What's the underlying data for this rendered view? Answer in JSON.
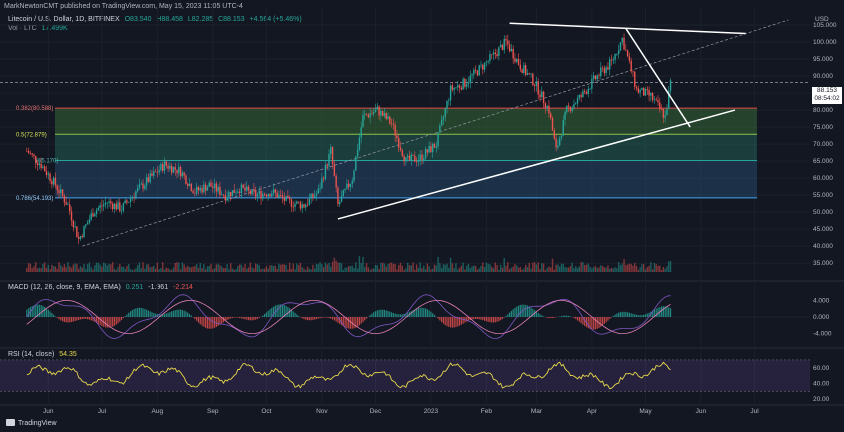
{
  "header": {
    "publisher": "MarkNewtonCMT published on TradingView.com, May 15, 2023 11:05 UTC-4",
    "symbol": "Litecoin / U.S. Dollar, 1D, BITFINEX",
    "open": "O83.540",
    "high": "H88.458",
    "low": "L82.285",
    "close": "C88.153",
    "change": "+4.564 (+5.46%)",
    "vol_label": "Vol · LTC",
    "vol_value": "17.499K"
  },
  "price_axis": {
    "currency": "USD",
    "ticks": [
      "105.000",
      "100.000",
      "95.000",
      "90.000",
      "85.000",
      "80.000",
      "75.000",
      "70.000",
      "65.000",
      "60.000",
      "55.000",
      "50.000",
      "45.000",
      "40.000",
      "35.000"
    ]
  },
  "last_price": {
    "value": "88.153",
    "countdown": "08:54:02"
  },
  "fib_levels": [
    {
      "label": "0.382(80.588)",
      "value": 80.588
    },
    {
      "label": "0.5(72.879)",
      "value": 72.879
    },
    {
      "label": "(65.170)",
      "value": 65.17
    },
    {
      "label": "0.786(54.193)",
      "value": 54.193
    }
  ],
  "time_axis": [
    "Jun",
    "Jul",
    "Aug",
    "Sep",
    "Oct",
    "Nov",
    "Dec",
    "2023",
    "Feb",
    "Mar",
    "Apr",
    "May",
    "Jun",
    "Jul"
  ],
  "macd": {
    "label": "MACD (12, 26, close, 9, EMA, EMA)",
    "hist": "0.251",
    "macd": "-1.961",
    "signal": "-2.214",
    "ticks": [
      "4.000",
      "0.000",
      "-4.000"
    ]
  },
  "rsi": {
    "label": "RSI (14, close)",
    "value": "54.35",
    "ticks": [
      "60.00",
      "40.00",
      "20.00"
    ]
  },
  "footer": {
    "brand": "TradingView"
  },
  "colors": {
    "bull": "#26a69a",
    "bear": "#ef5350",
    "bg": "#131722",
    "rsi": "#e8d94a",
    "macd_line": "#7e57c2",
    "signal_line": "#e57fb8"
  },
  "chart_data": {
    "type": "line",
    "title": "Litecoin / U.S. Dollar, 1D, BITFINEX",
    "xlabel": "",
    "ylabel": "USD",
    "ylim": [
      33,
      110
    ],
    "x": [
      "2022-05-20",
      "2022-05-28",
      "2022-06-05",
      "2022-06-12",
      "2022-06-18",
      "2022-06-26",
      "2022-07-04",
      "2022-07-12",
      "2022-07-20",
      "2022-07-28",
      "2022-08-05",
      "2022-08-14",
      "2022-08-22",
      "2022-08-30",
      "2022-09-08",
      "2022-09-16",
      "2022-09-25",
      "2022-10-04",
      "2022-10-13",
      "2022-10-22",
      "2022-10-30",
      "2022-11-06",
      "2022-11-10",
      "2022-11-18",
      "2022-11-24",
      "2022-12-02",
      "2022-12-10",
      "2022-12-18",
      "2022-12-26",
      "2023-01-04",
      "2023-01-12",
      "2023-01-20",
      "2023-01-28",
      "2023-02-05",
      "2023-02-12",
      "2023-02-20",
      "2023-02-28",
      "2023-03-08",
      "2023-03-12",
      "2023-03-18",
      "2023-03-26",
      "2023-04-04",
      "2023-04-12",
      "2023-04-18",
      "2023-04-26",
      "2023-05-04",
      "2023-05-12",
      "2023-05-15"
    ],
    "series": [
      {
        "values": [
          68,
          64,
          58,
          52,
          42,
          50,
          53,
          51,
          56,
          60,
          64,
          62,
          56,
          58,
          55,
          57,
          55,
          56,
          53,
          52,
          56,
          68,
          52,
          60,
          78,
          80,
          76,
          65,
          66,
          70,
          86,
          88,
          92,
          96,
          100,
          93,
          88,
          80,
          68,
          80,
          84,
          90,
          94,
          101,
          86,
          84,
          78,
          88
        ]
      }
    ],
    "fib": [
      80.588,
      72.879,
      65.17,
      54.193
    ],
    "trendlines": [
      {
        "from": [
          "2022-11-10",
          48
        ],
        "to": [
          "2023-06-20",
          80
        ]
      },
      {
        "from": [
          "2023-02-14",
          105.5
        ],
        "to": [
          "2023-06-26",
          102.5
        ]
      },
      {
        "from": [
          "2023-04-20",
          104
        ],
        "to": [
          "2023-05-26",
          75
        ]
      }
    ],
    "grid": true
  }
}
